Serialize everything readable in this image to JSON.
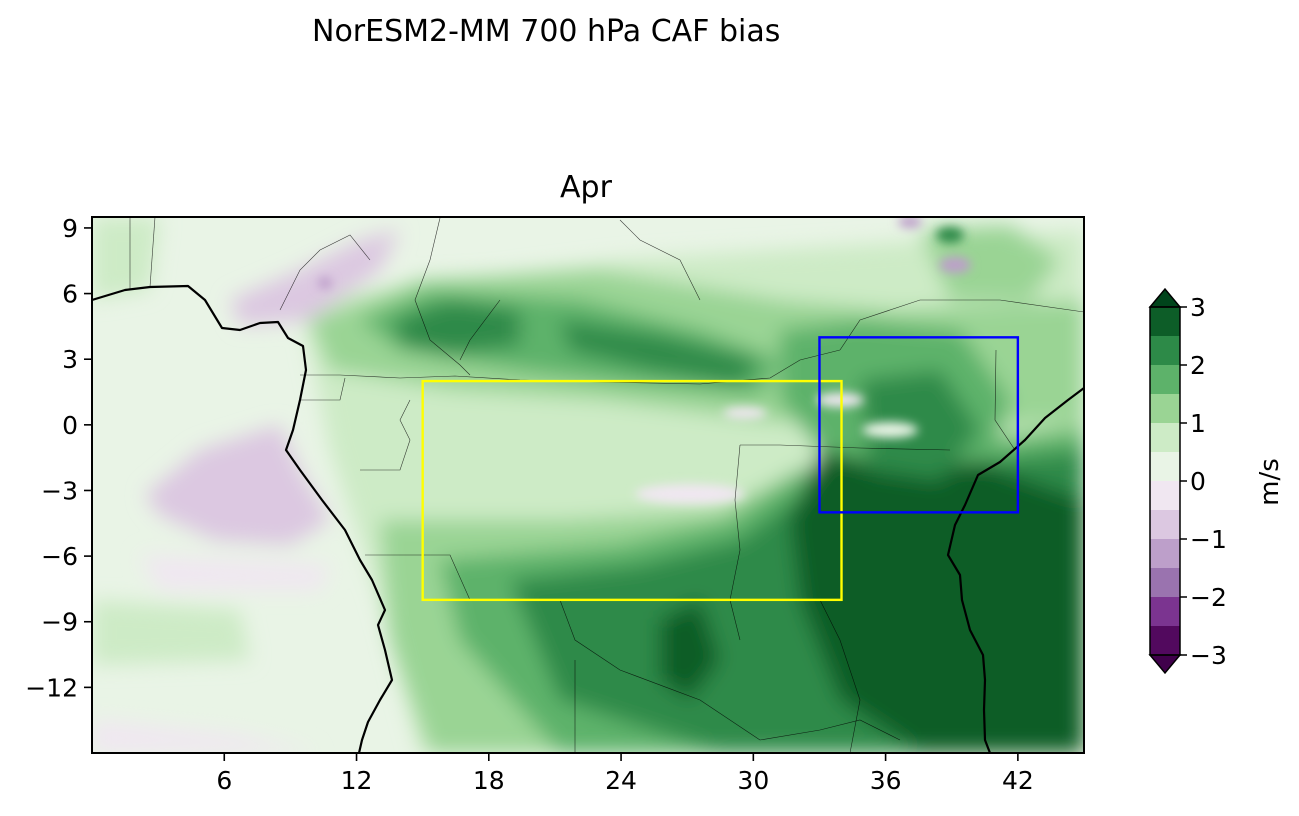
{
  "figure": {
    "suptitle": "NorESM2-MM 700 hPa CAF bias",
    "panel_title": "Apr"
  },
  "map": {
    "lon_range": [
      0,
      45
    ],
    "lat_range": [
      -15,
      9.5
    ],
    "x_ticks": [
      {
        "value": 6,
        "label": "6"
      },
      {
        "value": 12,
        "label": "12"
      },
      {
        "value": 18,
        "label": "18"
      },
      {
        "value": 24,
        "label": "24"
      },
      {
        "value": 30,
        "label": "30"
      },
      {
        "value": 36,
        "label": "36"
      },
      {
        "value": 42,
        "label": "42"
      }
    ],
    "y_ticks": [
      {
        "value": 9,
        "label": "9"
      },
      {
        "value": 6,
        "label": "6"
      },
      {
        "value": 3,
        "label": "3"
      },
      {
        "value": 0,
        "label": "0"
      },
      {
        "value": -3,
        "label": "−3"
      },
      {
        "value": -6,
        "label": "−6"
      },
      {
        "value": -9,
        "label": "−9"
      },
      {
        "value": -12,
        "label": "−12"
      }
    ],
    "boxes": [
      {
        "name": "yellow-region-box",
        "color": "#ffff00",
        "lon": [
          15,
          34
        ],
        "lat": [
          -8,
          2
        ]
      },
      {
        "name": "blue-region-box",
        "color": "#0000ff",
        "lon": [
          33,
          42
        ],
        "lat": [
          -4,
          4
        ]
      }
    ]
  },
  "colorbar": {
    "label": "m/s",
    "ticks": [
      {
        "value": 3,
        "label": "3"
      },
      {
        "value": 2,
        "label": "2"
      },
      {
        "value": 1,
        "label": "1"
      },
      {
        "value": 0,
        "label": "0"
      },
      {
        "value": -1,
        "label": "−1"
      },
      {
        "value": -2,
        "label": "−2"
      },
      {
        "value": -3,
        "label": "−3"
      }
    ],
    "levels": [
      {
        "range": [
          2.5,
          3
        ],
        "color": "#0d5d28"
      },
      {
        "range": [
          2,
          2.5
        ],
        "color": "#2d8a48"
      },
      {
        "range": [
          1.5,
          2
        ],
        "color": "#5db26a"
      },
      {
        "range": [
          1,
          1.5
        ],
        "color": "#9ad494"
      },
      {
        "range": [
          0.5,
          1
        ],
        "color": "#cdebc6"
      },
      {
        "range": [
          0,
          0.5
        ],
        "color": "#e9f4e6"
      },
      {
        "range": [
          -0.5,
          0
        ],
        "color": "#f0e7f1"
      },
      {
        "range": [
          -1,
          -0.5
        ],
        "color": "#dcc8e1"
      },
      {
        "range": [
          -1.5,
          -1
        ],
        "color": "#bd9fca"
      },
      {
        "range": [
          -2,
          -1.5
        ],
        "color": "#9a73af"
      },
      {
        "range": [
          -2.5,
          -2
        ],
        "color": "#7b3490"
      },
      {
        "range": [
          -3,
          -2.5
        ],
        "color": "#52095e"
      }
    ],
    "extend_max_color": "#00441b",
    "extend_min_color": "#40004b"
  }
}
